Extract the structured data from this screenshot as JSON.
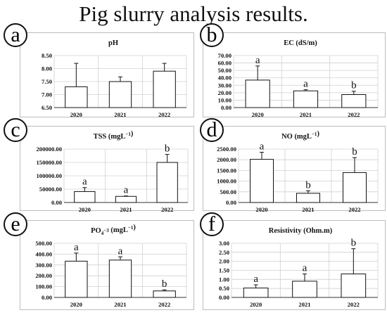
{
  "title": "Pig slurry analysis results.",
  "chart_data": [
    {
      "letter": "a",
      "type": "bar",
      "title": "pH",
      "title_sup": "",
      "categories": [
        "2020",
        "2021",
        "2022"
      ],
      "values": [
        7.3,
        7.5,
        7.9
      ],
      "errors": [
        0.9,
        0.18,
        0.3
      ],
      "labels": [
        "",
        "",
        ""
      ],
      "ylim": [
        6.5,
        8.5
      ],
      "yticks": [
        6.5,
        7.0,
        7.5,
        8.0,
        8.5
      ],
      "ytick_labels": [
        "6.50",
        "7.00",
        "7.50",
        "8.00",
        "8.50"
      ]
    },
    {
      "letter": "b",
      "type": "bar",
      "title": "EC (dS/m)",
      "title_sup": "",
      "categories": [
        "2020",
        "2021",
        "2022"
      ],
      "values": [
        37,
        22.5,
        17.5
      ],
      "errors": [
        19,
        1.5,
        4.5
      ],
      "labels": [
        "a",
        "a",
        "b"
      ],
      "ylim": [
        0,
        70
      ],
      "yticks": [
        0,
        10,
        20,
        30,
        40,
        50,
        60,
        70
      ],
      "ytick_labels": [
        "0.00",
        "10.00",
        "20.00",
        "30.00",
        "40.00",
        "50.00",
        "60.00",
        "70.00"
      ]
    },
    {
      "letter": "c",
      "type": "bar",
      "title": "TSS (mgL",
      "title_sup": "−1",
      "title_end": ")",
      "categories": [
        "2020",
        "2021",
        "2022"
      ],
      "values": [
        41000,
        23000,
        150000
      ],
      "errors": [
        15000,
        1500,
        30000
      ],
      "labels": [
        "a",
        "a",
        "b"
      ],
      "ylim": [
        0,
        200000
      ],
      "yticks": [
        0,
        50000,
        100000,
        150000,
        200000
      ],
      "ytick_labels": [
        "0.00",
        "50000.00",
        "100000.00",
        "150000.00",
        "200000.00"
      ]
    },
    {
      "letter": "d",
      "type": "bar",
      "title": "NO (mgL",
      "title_sup": "−1",
      "title_end": ")",
      "categories": [
        "2020",
        "2021",
        "2022"
      ],
      "values": [
        2020,
        430,
        1400
      ],
      "errors": [
        330,
        120,
        700
      ],
      "labels": [
        "a",
        "b",
        "b"
      ],
      "ylim": [
        0,
        2500
      ],
      "yticks": [
        0,
        500,
        1000,
        1500,
        2000,
        2500
      ],
      "ytick_labels": [
        "0.00",
        "500.00",
        "1000.00",
        "1500.00",
        "2000.00",
        "2500.00"
      ]
    },
    {
      "letter": "e",
      "type": "bar",
      "title": "PO",
      "title_sub": "4",
      "title_sup": "−3",
      "title_end": " (mgL",
      "title_sup2": "−1",
      "title_end2": ")",
      "categories": [
        "2020",
        "2021",
        "2022"
      ],
      "values": [
        335,
        345,
        60
      ],
      "errors": [
        75,
        30,
        10
      ],
      "labels": [
        "a",
        "a",
        "b"
      ],
      "ylim": [
        0,
        500
      ],
      "yticks": [
        0,
        100,
        200,
        300,
        400,
        500
      ],
      "ytick_labels": [
        "0.00",
        "100.00",
        "200.00",
        "300.00",
        "400.00",
        "500.00"
      ]
    },
    {
      "letter": "f",
      "type": "bar",
      "title": "Resistivity (Ohm.m)",
      "title_sup": "",
      "categories": [
        "2020",
        "2021",
        "2022"
      ],
      "values": [
        0.52,
        0.9,
        1.3
      ],
      "errors": [
        0.18,
        0.4,
        1.4
      ],
      "labels": [
        "a",
        "a",
        "b"
      ],
      "ylim": [
        0,
        3
      ],
      "yticks": [
        0,
        0.5,
        1.0,
        1.5,
        2.0,
        2.5,
        3.0
      ],
      "ytick_labels": [
        "0.00",
        "0.50",
        "1.00",
        "1.50",
        "2.00",
        "2.50",
        "3.00"
      ]
    }
  ]
}
